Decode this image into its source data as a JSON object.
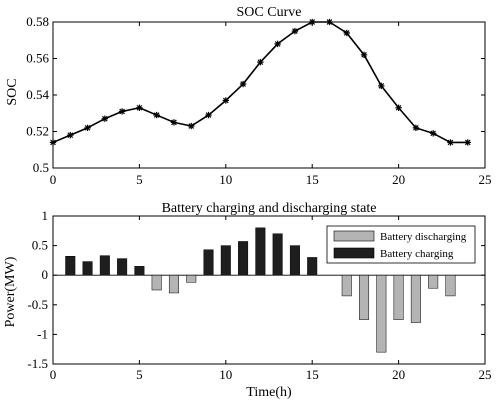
{
  "chart_data": [
    {
      "type": "line",
      "title": "SOC Curve",
      "xlabel": "",
      "ylabel": "SOC",
      "xlim": [
        0,
        25
      ],
      "ylim": [
        0.5,
        0.58
      ],
      "xticks": [
        0,
        5,
        10,
        15,
        20,
        25
      ],
      "yticks": [
        0.5,
        0.52,
        0.54,
        0.56,
        0.58
      ],
      "grid": false,
      "series": [
        {
          "x": [
            0,
            1,
            2,
            3,
            4,
            5,
            6,
            7,
            8,
            9,
            10,
            11,
            12,
            13,
            14,
            15,
            16,
            17,
            18,
            19,
            20,
            21,
            22,
            23,
            24
          ],
          "values": [
            0.514,
            0.518,
            0.522,
            0.527,
            0.531,
            0.533,
            0.529,
            0.525,
            0.523,
            0.529,
            0.537,
            0.546,
            0.558,
            0.568,
            0.575,
            0.58,
            0.58,
            0.574,
            0.562,
            0.545,
            0.533,
            0.522,
            0.519,
            0.514,
            0.514
          ],
          "color": "#000000",
          "marker": "asterisk"
        }
      ]
    },
    {
      "type": "bar",
      "title": "Battery charging and discharging state",
      "xlabel": "Time(h)",
      "ylabel": "Power(MW)",
      "xlim": [
        0,
        25
      ],
      "ylim": [
        -1.5,
        1
      ],
      "xticks": [
        0,
        5,
        10,
        15,
        20,
        25
      ],
      "yticks": [
        1,
        0.5,
        0,
        -0.5,
        -1,
        -1.5
      ],
      "yticklabels": [
        "1",
        "0.5",
        "0",
        "-0.5",
        "-1",
        "-1.5"
      ],
      "grid": false,
      "legend_position": "top-right",
      "series": [
        {
          "name": "Battery discharging",
          "color": "#b4b4b4",
          "x": [
            6,
            7,
            8,
            17,
            18,
            19,
            20,
            21,
            22,
            23
          ],
          "values": [
            -0.25,
            -0.3,
            -0.12,
            -0.35,
            -0.75,
            -1.3,
            -0.75,
            -0.8,
            -0.22,
            -0.35
          ]
        },
        {
          "name": "Battery charging",
          "color": "#1e1e1e",
          "x": [
            1,
            2,
            3,
            4,
            5,
            9,
            10,
            11,
            12,
            13,
            14,
            15
          ],
          "values": [
            0.32,
            0.23,
            0.33,
            0.28,
            0.15,
            0.43,
            0.5,
            0.57,
            0.8,
            0.7,
            0.5,
            0.3
          ]
        }
      ]
    }
  ]
}
